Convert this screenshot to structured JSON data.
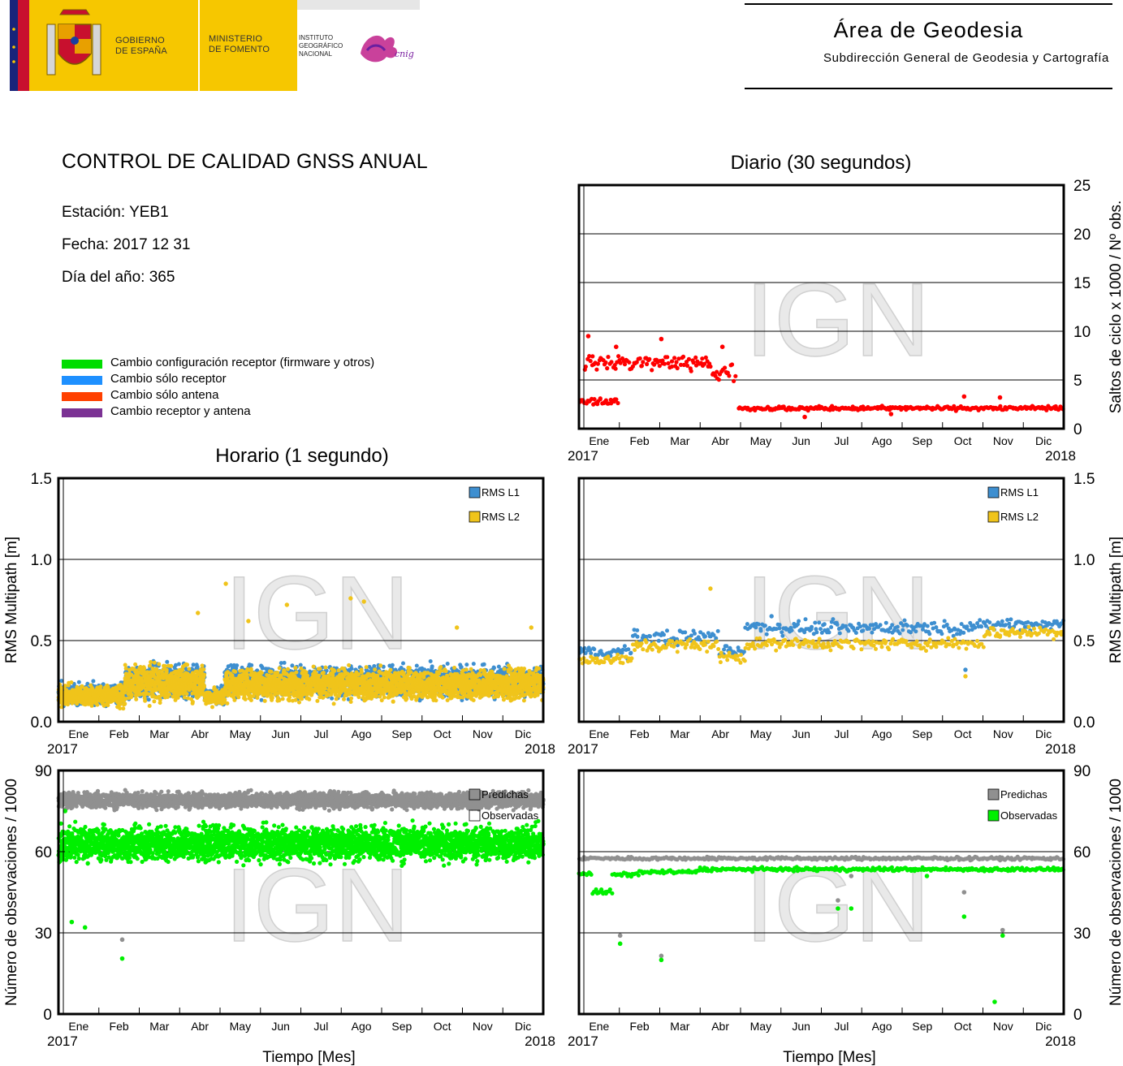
{
  "header": {
    "gov_line1": "GOBIERNO",
    "gov_line2": "DE ESPAÑA",
    "min_line1": "MINISTERIO",
    "min_line2": "DE FOMENTO",
    "ign_line1": "INSTITUTO",
    "ign_line2": "GEOGRÁFICO",
    "ign_line3": "NACIONAL",
    "cnig": "cnig",
    "area": "Área de Geodesia",
    "subdir": "Subdirección General de Geodesia y Cartografía"
  },
  "info": {
    "title": "CONTROL DE CALIDAD GNSS ANUAL",
    "station": "Estación: YEB1",
    "date": "Fecha: 2017 12 31",
    "doy": "Día del año: 365"
  },
  "legend": [
    {
      "label": "Cambio configuración receptor (firmware y otros)",
      "color": "#00dd00"
    },
    {
      "label": "Cambio sólo receptor",
      "color": "#1e90ff"
    },
    {
      "label": "Cambio sólo antena",
      "color": "#ff4000"
    },
    {
      "label": "Cambio receptor y antena",
      "color": "#7b3294"
    }
  ],
  "titles": {
    "daily": "Diario (30 segundos)",
    "hourly": "Horario (1 segundo)"
  },
  "axes": {
    "months": [
      "Ene",
      "Feb",
      "Mar",
      "Abr",
      "May",
      "Jun",
      "Jul",
      "Ago",
      "Sep",
      "Oct",
      "Nov",
      "Dic"
    ],
    "year_start": "2017",
    "year_end": "2018",
    "xlabel": "Tiempo [Mes]",
    "ylabel_slips": "Saltos de ciclo x 1000 / Nº obs.",
    "ylabel_rms": "RMS Multipath [m]",
    "ylabel_obs": "Número de observaciones / 1000",
    "watermark": "IGN"
  },
  "colors": {
    "slips": "#ff0000",
    "l1": "#3e8fd0",
    "l2": "#f0c41b",
    "pred": "#909090",
    "obs": "#00f000",
    "grid": "#000000"
  },
  "chart_data": [
    {
      "id": "slips_daily",
      "type": "scatter",
      "title": "Diario (30 segundos)",
      "ylabel": "Saltos de ciclo x 1000 / Nº obs.",
      "ylim": [
        0,
        25
      ],
      "yticks": [
        0,
        5,
        10,
        15,
        20,
        25
      ],
      "xlim": [
        0,
        365
      ],
      "grid": true,
      "series": [
        {
          "name": "",
          "segments": [
            [
              0,
              30,
              2.8,
              0.6
            ],
            [
              4,
              100,
              6.8,
              1.2
            ],
            [
              100,
              118,
              5.6,
              1.6
            ],
            [
              120,
              365,
              2.1,
              0.3
            ]
          ],
          "outliers": [
            [
              7,
              9.5
            ],
            [
              28,
              8.4
            ],
            [
              62,
              9.2
            ],
            [
              108,
              8.4
            ],
            [
              170,
              1.2
            ],
            [
              235,
              1.5
            ],
            [
              290,
              3.3
            ],
            [
              317,
              3.2
            ]
          ]
        }
      ]
    },
    {
      "id": "rms_hourly",
      "type": "scatter",
      "ylabel": "RMS Multipath [m]",
      "ylim": [
        0,
        1.5
      ],
      "yticks": [
        "0.0",
        "0.5",
        "1.0",
        "1.5"
      ],
      "xlim": [
        0,
        365
      ],
      "grid": true,
      "series": [
        {
          "name": "RMS L1",
          "segments": [
            [
              0,
              50,
              0.17,
              0.09
            ],
            [
              50,
              110,
              0.25,
              0.15
            ],
            [
              110,
              125,
              0.16,
              0.07
            ],
            [
              125,
              365,
              0.25,
              0.13
            ]
          ]
        },
        {
          "name": "RMS L2",
          "segments": [
            [
              0,
              50,
              0.16,
              0.09
            ],
            [
              50,
              110,
              0.24,
              0.15
            ],
            [
              110,
              125,
              0.15,
              0.07
            ],
            [
              125,
              365,
              0.23,
              0.13
            ]
          ],
          "outliers": [
            [
              126,
              0.85
            ],
            [
              105,
              0.67
            ],
            [
              172,
              0.72
            ],
            [
              220,
              0.76
            ],
            [
              230,
              0.74
            ],
            [
              143,
              0.62
            ],
            [
              300,
              0.58
            ],
            [
              356,
              0.58
            ]
          ]
        }
      ]
    },
    {
      "id": "rms_daily",
      "type": "scatter",
      "ylabel": "RMS Multipath [m]",
      "ylim": [
        0,
        1.5
      ],
      "yticks": [
        "0.0",
        "0.5",
        "1.0",
        "1.5"
      ],
      "xlim": [
        0,
        365
      ],
      "grid": true,
      "series": [
        {
          "name": "RMS L1",
          "segments": [
            [
              0,
              40,
              0.43,
              0.05
            ],
            [
              40,
              105,
              0.52,
              0.07
            ],
            [
              105,
              125,
              0.44,
              0.05
            ],
            [
              125,
              305,
              0.58,
              0.06
            ],
            [
              305,
              365,
              0.6,
              0.05
            ]
          ],
          "outliers": [
            [
              291,
              0.32
            ],
            [
              145,
              0.65
            ]
          ]
        },
        {
          "name": "RMS L2",
          "segments": [
            [
              0,
              40,
              0.38,
              0.05
            ],
            [
              40,
              105,
              0.47,
              0.06
            ],
            [
              105,
              125,
              0.4,
              0.05
            ],
            [
              125,
              305,
              0.48,
              0.05
            ],
            [
              305,
              365,
              0.55,
              0.05
            ]
          ],
          "outliers": [
            [
              99,
              0.82
            ],
            [
              291,
              0.28
            ]
          ]
        }
      ]
    },
    {
      "id": "obs_hourly",
      "type": "scatter",
      "ylabel": "Número de observaciones / 1000",
      "ylim": [
        0,
        90
      ],
      "yticks": [
        0,
        30,
        60,
        90
      ],
      "xlim": [
        0,
        365
      ],
      "grid": true,
      "series": [
        {
          "name": "Predichas",
          "segments": [
            [
              0,
              365,
              79,
              4
            ]
          ],
          "outliers": [
            [
              48,
              27.5
            ]
          ]
        },
        {
          "name": "Observadas",
          "segments": [
            [
              0,
              365,
              63,
              9
            ]
          ],
          "outliers": [
            [
              10,
              34
            ],
            [
              20,
              32
            ],
            [
              48,
              20.5
            ],
            [
              5,
              75
            ]
          ]
        }
      ]
    },
    {
      "id": "obs_daily",
      "type": "scatter",
      "ylabel": "Número de observaciones / 1000",
      "ylim": [
        0,
        90
      ],
      "yticks": [
        0,
        30,
        60,
        90
      ],
      "xlim": [
        0,
        365
      ],
      "grid": true,
      "series": [
        {
          "name": "Predichas",
          "segments": [
            [
              0,
              365,
              57.5,
              0.8
            ]
          ],
          "outliers": [
            [
              31,
              29
            ],
            [
              62,
              21.5
            ],
            [
              195,
              42
            ],
            [
              205,
              51
            ],
            [
              290,
              45
            ],
            [
              319,
              31
            ]
          ]
        },
        {
          "name": "Observadas",
          "segments": [
            [
              0,
              10,
              52,
              1
            ],
            [
              10,
              25,
              45,
              1.8
            ],
            [
              25,
              45,
              51.5,
              1
            ],
            [
              45,
              90,
              52.5,
              1
            ],
            [
              90,
              365,
              53.5,
              1
            ]
          ],
          "outliers": [
            [
              31,
              26
            ],
            [
              62,
              20
            ],
            [
              195,
              39
            ],
            [
              205,
              39
            ],
            [
              262,
              51
            ],
            [
              290,
              36
            ],
            [
              313,
              4.5
            ],
            [
              319,
              29
            ]
          ]
        }
      ]
    }
  ]
}
